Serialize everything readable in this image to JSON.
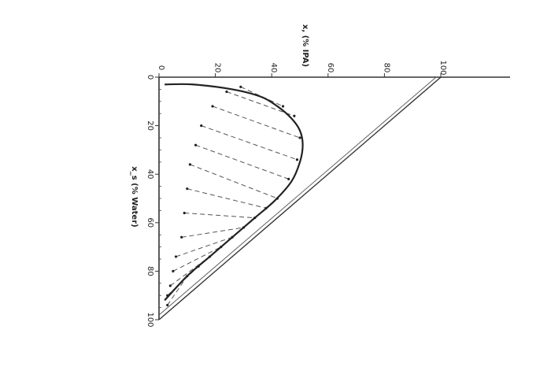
{
  "chart_data": {
    "type": "ternary-triangular",
    "orientation": "rotated-90",
    "x_axis": {
      "label": "x, (% IPA)",
      "range": [
        0,
        100
      ],
      "ticks": [
        0,
        20,
        40,
        60,
        80,
        100
      ]
    },
    "y_axis": {
      "label": "x_s (% Water)",
      "range": [
        0,
        100
      ],
      "ticks": [
        0,
        20,
        40,
        60,
        80,
        100
      ]
    },
    "hypotenuse": {
      "from": [
        100,
        0
      ],
      "to": [
        0,
        100
      ]
    },
    "binodal_curve": {
      "x": [
        2,
        12,
        26,
        36,
        42,
        47,
        50,
        51,
        50,
        47,
        41,
        34,
        26,
        18,
        10,
        2
      ],
      "y": [
        3,
        3,
        5,
        8,
        12,
        17,
        22,
        28,
        35,
        43,
        51,
        58,
        66,
        74,
        82,
        92
      ]
    },
    "tie_lines": [
      {
        "left": [
          3,
          94
        ],
        "right": [
          10,
          82
        ]
      },
      {
        "left": [
          3,
          90
        ],
        "right": [
          14,
          78
        ]
      },
      {
        "left": [
          4,
          86
        ],
        "right": [
          18,
          74
        ]
      },
      {
        "left": [
          5,
          80
        ],
        "right": [
          22,
          70
        ]
      },
      {
        "left": [
          6,
          74
        ],
        "right": [
          26,
          66
        ]
      },
      {
        "left": [
          8,
          66
        ],
        "right": [
          30,
          62
        ]
      },
      {
        "left": [
          9,
          56
        ],
        "right": [
          34,
          58
        ]
      },
      {
        "left": [
          10,
          46
        ],
        "right": [
          38,
          54
        ]
      },
      {
        "left": [
          11,
          36
        ],
        "right": [
          42,
          50
        ]
      },
      {
        "left": [
          13,
          28
        ],
        "right": [
          46,
          42
        ]
      },
      {
        "left": [
          15,
          20
        ],
        "right": [
          49,
          34
        ]
      },
      {
        "left": [
          19,
          12
        ],
        "right": [
          50,
          25
        ]
      },
      {
        "left": [
          24,
          6
        ],
        "right": [
          48,
          16
        ]
      },
      {
        "left": [
          29,
          4
        ],
        "right": [
          44,
          12
        ]
      }
    ]
  }
}
